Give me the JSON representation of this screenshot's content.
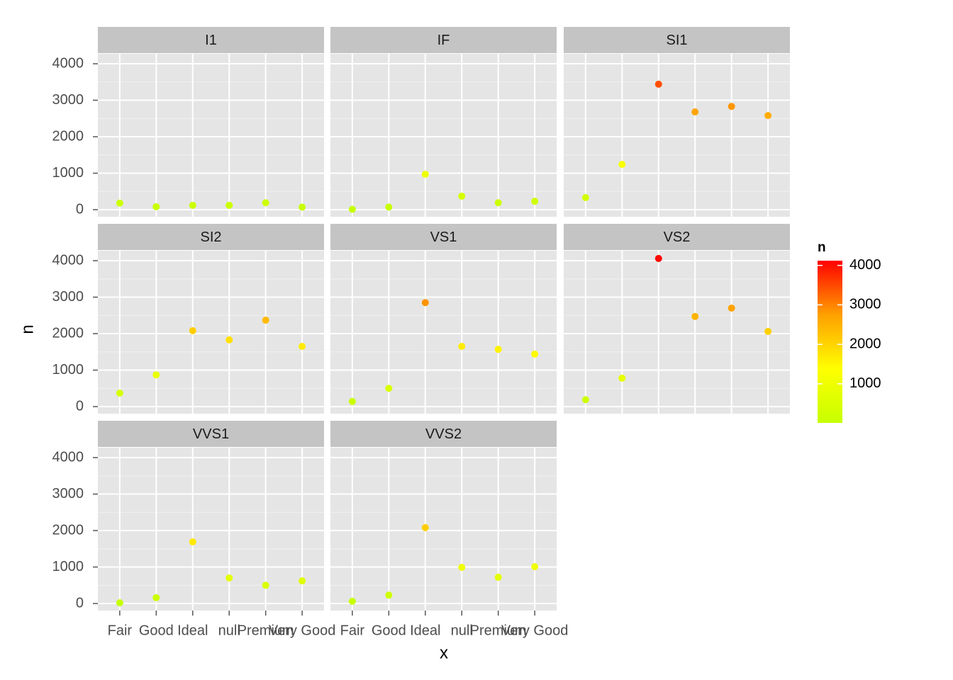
{
  "chart_data": {
    "type": "scatter",
    "x_label": "x",
    "y_label": "n",
    "categories": [
      "Fair",
      "Good",
      "Ideal",
      "null",
      "Premium",
      "Very Good"
    ],
    "ylim": [
      -194,
      4272
    ],
    "yticks": [
      0,
      1000,
      2000,
      3000,
      4000
    ],
    "grid": true,
    "color_scale": {
      "title": "n",
      "lim": [
        10,
        4120
      ],
      "ticks": [
        1000,
        2000,
        3000,
        4000
      ],
      "colors": [
        "#c6ff00",
        "#ffff00",
        "#ffa000",
        "#ff0000"
      ]
    },
    "facets": [
      {
        "title": "I1",
        "values": [
          180,
          80,
          120,
          120,
          190,
          70
        ]
      },
      {
        "title": "IF",
        "values": [
          10,
          70,
          970,
          370,
          190,
          230
        ]
      },
      {
        "title": "SI1",
        "values": [
          330,
          1240,
          3440,
          2680,
          2830,
          2580
        ]
      },
      {
        "title": "SI2",
        "values": [
          370,
          870,
          2080,
          1830,
          2370,
          1650
        ]
      },
      {
        "title": "VS1",
        "values": [
          140,
          500,
          2850,
          1650,
          1570,
          1440
        ]
      },
      {
        "title": "VS2",
        "values": [
          190,
          780,
          4060,
          2470,
          2700,
          2060
        ]
      },
      {
        "title": "VVS1",
        "values": [
          20,
          160,
          1690,
          700,
          500,
          620
        ]
      },
      {
        "title": "VVS2",
        "values": [
          60,
          230,
          2080,
          990,
          720,
          1010
        ]
      }
    ]
  }
}
